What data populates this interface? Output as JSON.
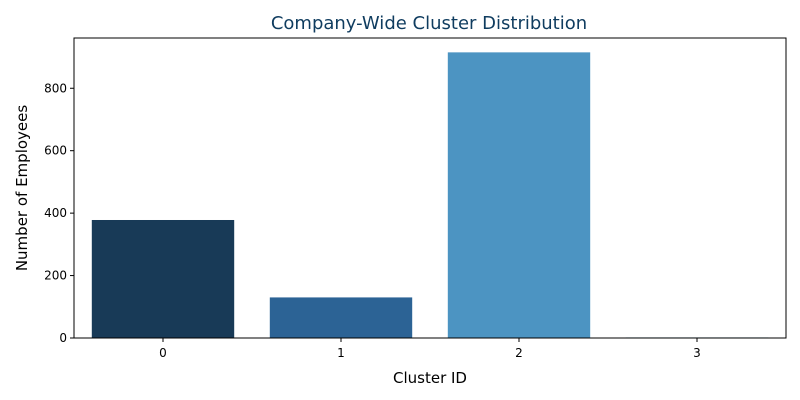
{
  "chart_data": {
    "type": "bar",
    "title": "Company-Wide Cluster Distribution",
    "xlabel": "Cluster ID",
    "ylabel": "Number of Employees",
    "categories": [
      "0",
      "1",
      "2",
      "3"
    ],
    "values": [
      378,
      130,
      915,
      2
    ],
    "ylim": [
      0,
      961
    ],
    "yticks": [
      0,
      200,
      400,
      600,
      800
    ],
    "grid": false,
    "colors": {
      "title": "#0f3c5f",
      "bars": [
        "#183a57",
        "#2c6395",
        "#4c94c2",
        "#a6cde8"
      ]
    }
  }
}
